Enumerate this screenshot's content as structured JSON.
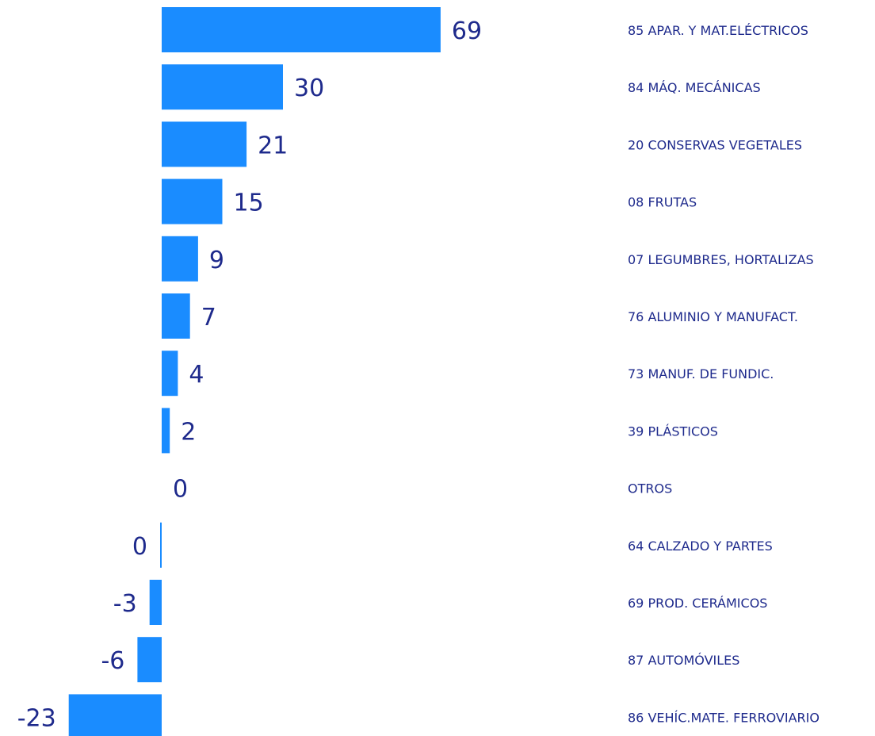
{
  "colors": {
    "bar": "#1a8cff",
    "text": "#1e2a8c",
    "background": "#ffffff"
  },
  "chart_data": {
    "type": "bar",
    "orientation": "horizontal",
    "title": "",
    "xlabel": "",
    "ylabel": "",
    "grid": false,
    "legend": "none",
    "categories": [
      "85 APAR. Y MAT.ELÉCTRICOS",
      "84 MÁQ. MECÁNICAS",
      "20 CONSERVAS VEGETALES",
      "08 FRUTAS",
      "07 LEGUMBRES, HORTALIZAS",
      "76 ALUMINIO Y MANUFACT.",
      "73 MANUF. DE FUNDIC.",
      "39 PLÁSTICOS",
      "OTROS",
      "64 CALZADO Y PARTES",
      "69 PROD. CERÁMICOS",
      "87 AUTOMÓVILES",
      "86 VEHÍC.MATE. FERROVIARIO"
    ],
    "values": [
      69,
      30,
      21,
      15,
      9,
      7,
      4,
      2,
      0,
      -0.2,
      -3,
      -6,
      -23
    ],
    "value_labels": [
      "69",
      "30",
      "21",
      "15",
      "9",
      "7",
      "4",
      "2",
      "0",
      "0",
      "-3",
      "-6",
      "-23"
    ]
  }
}
